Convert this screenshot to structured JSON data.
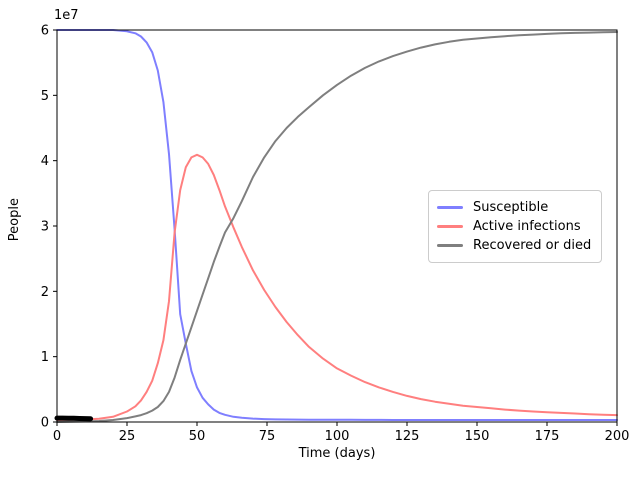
{
  "chart_data": {
    "type": "line",
    "title": "",
    "xlabel": "Time (days)",
    "ylabel": "People",
    "offset_text": "1e7",
    "y_units": "1e7 people",
    "xlim": [
      0,
      200
    ],
    "ylim": [
      0,
      6
    ],
    "xticks": [
      0,
      25,
      50,
      75,
      100,
      125,
      150,
      175,
      200
    ],
    "yticks": [
      0,
      1,
      2,
      3,
      4,
      5,
      6
    ],
    "grid": false,
    "axis_color": "#000000",
    "legend": {
      "position": "center-right",
      "border_color": "#cccccc"
    },
    "x": [
      0,
      5,
      10,
      15,
      20,
      25,
      28,
      30,
      32,
      34,
      36,
      38,
      40,
      42,
      44,
      46,
      48,
      50,
      52,
      54,
      56,
      58,
      60,
      63,
      66,
      70,
      74,
      78,
      82,
      86,
      90,
      95,
      100,
      105,
      110,
      115,
      120,
      125,
      130,
      135,
      140,
      145,
      150,
      155,
      160,
      165,
      170,
      175,
      180,
      185,
      190,
      195,
      200
    ],
    "series": [
      {
        "name": "Susceptible",
        "color": "#7f7fff",
        "line_width": 2,
        "y": [
          6.0,
          6.0,
          6.0,
          6.0,
          6.0,
          5.98,
          5.95,
          5.9,
          5.81,
          5.66,
          5.38,
          4.9,
          4.1,
          2.95,
          1.65,
          1.2,
          0.78,
          0.53,
          0.37,
          0.27,
          0.19,
          0.14,
          0.11,
          0.08,
          0.065,
          0.052,
          0.045,
          0.04,
          0.038,
          0.036,
          0.035,
          0.034,
          0.033,
          0.033,
          0.032,
          0.032,
          0.031,
          0.031,
          0.031,
          0.03,
          0.03,
          0.03,
          0.03,
          0.03,
          0.03,
          0.03,
          0.03,
          0.03,
          0.03,
          0.03,
          0.03,
          0.03,
          0.03
        ]
      },
      {
        "name": "Active infections",
        "color": "#ff7f7f",
        "line_width": 2,
        "y": [
          0.03,
          0.033,
          0.038,
          0.05,
          0.08,
          0.16,
          0.24,
          0.33,
          0.46,
          0.63,
          0.9,
          1.25,
          1.85,
          2.9,
          3.55,
          3.9,
          4.05,
          4.09,
          4.05,
          3.95,
          3.78,
          3.55,
          3.3,
          2.98,
          2.68,
          2.32,
          2.02,
          1.76,
          1.53,
          1.33,
          1.15,
          0.97,
          0.82,
          0.71,
          0.61,
          0.53,
          0.46,
          0.4,
          0.35,
          0.31,
          0.28,
          0.25,
          0.23,
          0.21,
          0.19,
          0.175,
          0.16,
          0.15,
          0.14,
          0.13,
          0.12,
          0.11,
          0.105
        ]
      },
      {
        "name": "Recovered or died",
        "color": "#7f7f7f",
        "line_width": 2,
        "y": [
          0.0,
          0.003,
          0.008,
          0.015,
          0.03,
          0.06,
          0.085,
          0.105,
          0.135,
          0.175,
          0.23,
          0.32,
          0.46,
          0.68,
          0.95,
          1.2,
          1.45,
          1.7,
          1.95,
          2.2,
          2.45,
          2.68,
          2.9,
          3.12,
          3.38,
          3.75,
          4.05,
          4.3,
          4.5,
          4.67,
          4.82,
          5.0,
          5.16,
          5.3,
          5.42,
          5.52,
          5.6,
          5.67,
          5.73,
          5.78,
          5.82,
          5.85,
          5.87,
          5.89,
          5.905,
          5.92,
          5.93,
          5.94,
          5.95,
          5.955,
          5.96,
          5.965,
          5.97
        ]
      }
    ],
    "observed": {
      "name": "observed-data",
      "color": "#000000",
      "line_width": 5,
      "x": [
        0,
        2,
        4,
        6,
        8,
        10,
        12
      ],
      "y": [
        0.06,
        0.06,
        0.058,
        0.056,
        0.054,
        0.052,
        0.05
      ]
    }
  }
}
